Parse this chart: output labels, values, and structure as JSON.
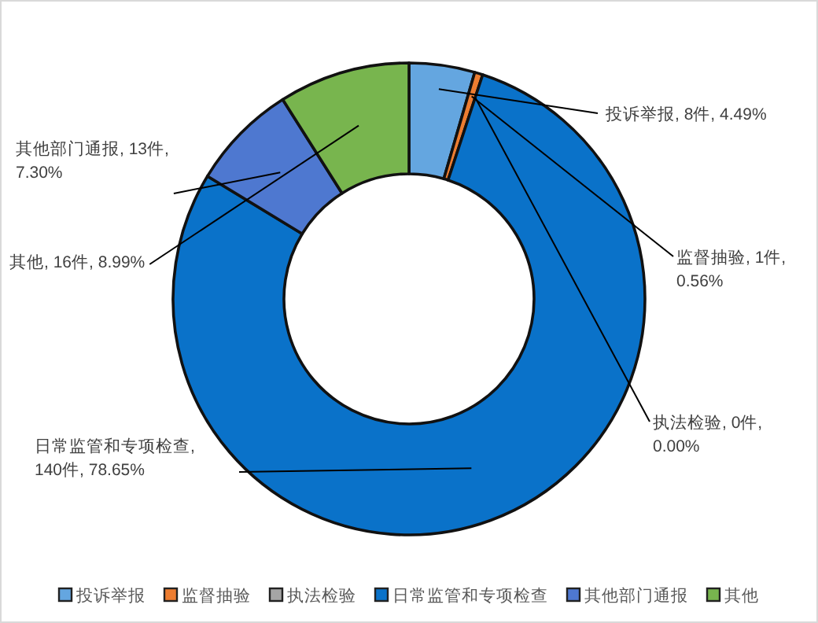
{
  "chart_data": {
    "type": "donut",
    "categories": [
      "投诉举报",
      "监督抽验",
      "执法检验",
      "日常监管和专项检查",
      "其他部门通报",
      "其他"
    ],
    "values": [
      8,
      1,
      0,
      140,
      13,
      16
    ],
    "colors": [
      "#64a6e0",
      "#ed7d31",
      "#a5a5a5",
      "#0a72c9",
      "#4e78d0",
      "#78b54e"
    ],
    "value_labels": [
      "投诉举报, 8件, 4.49%",
      "监督抽验, 1件, 0.56%",
      "执法检验, 0件, 0.00%",
      "日常监管和专项检查, 140件, 78.65%",
      "其他部门通报, 13件, 7.30%",
      "其他, 16件, 8.99%"
    ],
    "legend": "bottom"
  }
}
